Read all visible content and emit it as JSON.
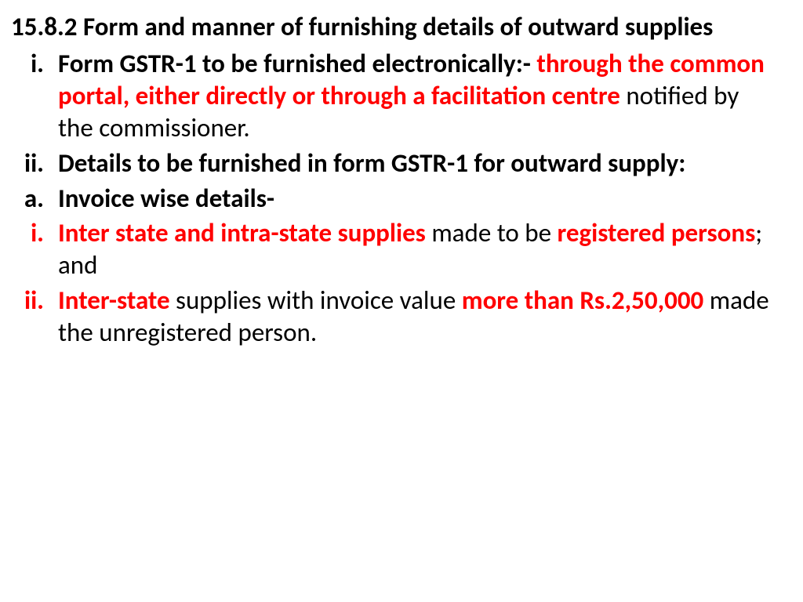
{
  "colors": {
    "red": "#ff0000",
    "black": "#000000",
    "bg": "#ffffff"
  },
  "typography": {
    "family": "Calibri",
    "size_pt": 25,
    "weight_bold": 700,
    "weight_normal": 400,
    "line_height": 1.24
  },
  "heading": "15.8.2 Form and manner of furnishing details of outward supplies",
  "items": {
    "i1": {
      "num": "i.",
      "p1": "Form GSTR-1 to be furnished electronically:-",
      "p2": "through the common portal, either directly or through a facilitation centre ",
      "p3": "notified by the commissioner."
    },
    "i2": {
      "num": "ii.",
      "p1": "Details to be furnished in form GSTR-1 for outward supply:"
    },
    "a": {
      "num": "a.",
      "p1": "Invoice wise details-"
    },
    "sub_i": {
      "num": "i.",
      "p1": "Inter state and intra-state supplies ",
      "p2": "made to be ",
      "p3": "registered persons",
      "p4": "; and"
    },
    "sub_ii": {
      "num": "ii.",
      "p1": "Inter-state ",
      "p2": "supplies with invoice value ",
      "p3": "more than Rs.2,50,000 ",
      "p4": "made the unregistered person."
    }
  }
}
